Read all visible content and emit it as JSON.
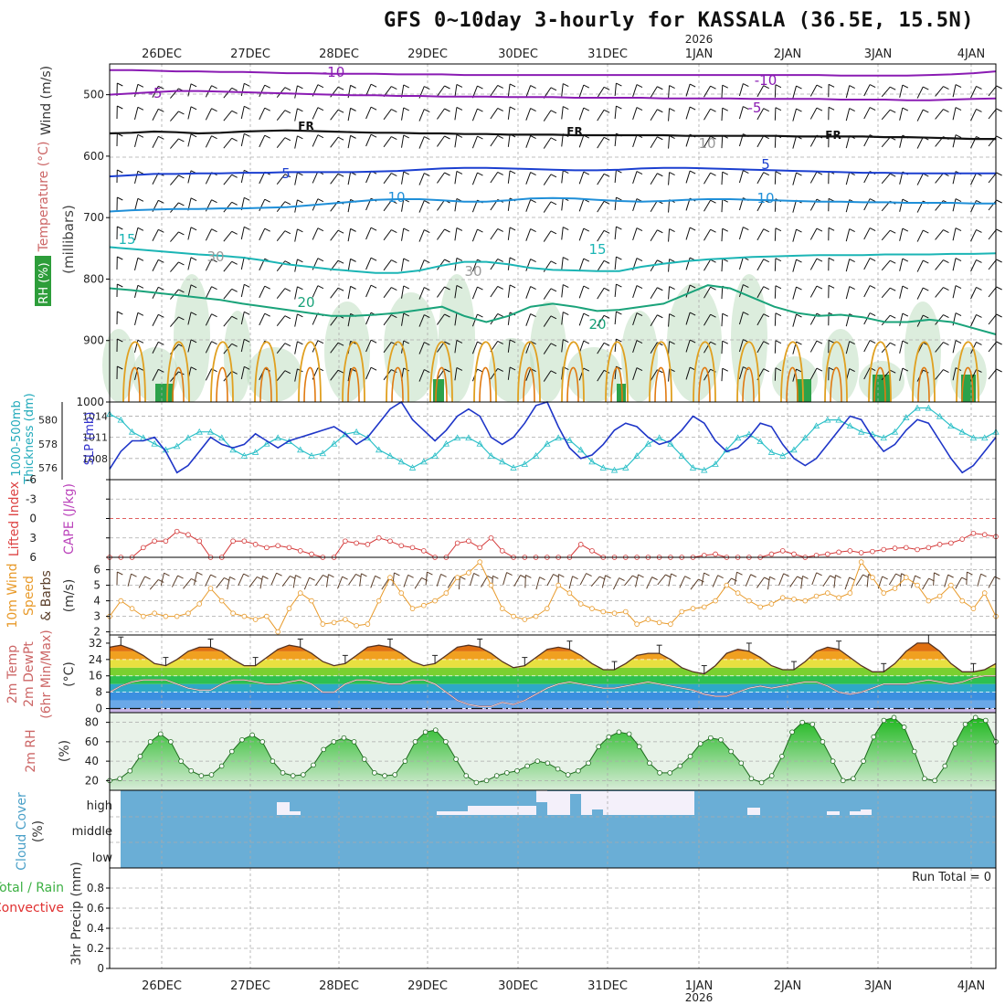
{
  "title": "GFS 0~10day 3-hourly for KASSALA (36.5E, 15.5N)",
  "year_label": "2026",
  "run_total_label": "Run Total = 0",
  "colors": {
    "temp_neg10": "#8a1bb3",
    "temp_neg5": "#8a1bb3",
    "temp_fr": "#111111",
    "temp_5": "#1b3fd0",
    "temp_10": "#1f8fd8",
    "temp_15": "#1bb5b5",
    "temp_20": "#1aa37a",
    "temp_25": "#e0a020",
    "temp_30": "#e07a10",
    "rh_fill": "#2d9d3a",
    "slp": "#1f36c8",
    "thickness": "#2ec0c8",
    "lifted": "#d43838",
    "wind10m": "#e89a2a",
    "barb": "#5a3e2a",
    "cloud": "#6aaed6"
  },
  "chart_data": [
    {
      "type": "line",
      "panel": "upper-air",
      "xlabel": "",
      "ylabel": "(millibars)",
      "side_labels": [
        "Wind (m/s)",
        "Temperature (°C)",
        "RH (%)"
      ],
      "y_ticks": [
        500,
        600,
        700,
        800,
        900,
        1000
      ],
      "ylim": [
        1000,
        450
      ],
      "contour_labels": [
        "-10",
        "-10",
        "-5",
        "-5",
        "FR",
        "FR",
        "FR",
        "5",
        "5",
        "10",
        "10",
        "15",
        "15",
        "20",
        "20",
        "30",
        "30",
        "10"
      ],
      "series": [
        {
          "name": "-10",
          "values": [
            460,
            460,
            461,
            462,
            462,
            463,
            463,
            464,
            465,
            465,
            466,
            466,
            466,
            467,
            467,
            467,
            468,
            468,
            468,
            468,
            468,
            468,
            468,
            468,
            468,
            468,
            468,
            468,
            468,
            468,
            468,
            468,
            468,
            469,
            469,
            469,
            469,
            468,
            467,
            465,
            462
          ]
        },
        {
          "name": "-5",
          "values": [
            500,
            498,
            496,
            494,
            494,
            495,
            496,
            497,
            498,
            499,
            500,
            501,
            501,
            502,
            502,
            503,
            503,
            503,
            504,
            504,
            504,
            505,
            505,
            505,
            505,
            506,
            506,
            506,
            506,
            507,
            507,
            507,
            507,
            508,
            508,
            508,
            509,
            509,
            508,
            507,
            506
          ]
        },
        {
          "name": "FR",
          "values": [
            563,
            562,
            560,
            561,
            563,
            562,
            560,
            559,
            558,
            559,
            560,
            561,
            562,
            562,
            563,
            563,
            564,
            564,
            565,
            565,
            565,
            566,
            566,
            566,
            566,
            566,
            567,
            567,
            567,
            567,
            567,
            568,
            568,
            568,
            568,
            569,
            569,
            570,
            571,
            572,
            572
          ]
        },
        {
          "name": "5",
          "values": [
            633,
            631,
            629,
            629,
            628,
            628,
            627,
            627,
            626,
            626,
            626,
            626,
            625,
            624,
            622,
            620,
            619,
            619,
            620,
            621,
            622,
            623,
            623,
            622,
            620,
            619,
            619,
            620,
            621,
            622,
            623,
            624,
            625,
            626,
            627,
            627,
            628,
            628,
            628,
            628,
            628
          ]
        },
        {
          "name": "10",
          "values": [
            690,
            688,
            687,
            686,
            686,
            685,
            685,
            684,
            683,
            680,
            677,
            674,
            671,
            670,
            670,
            672,
            674,
            674,
            672,
            669,
            668,
            669,
            671,
            673,
            674,
            673,
            671,
            670,
            670,
            671,
            672,
            673,
            674,
            674,
            675,
            675,
            676,
            676,
            676,
            677,
            677
          ]
        },
        {
          "name": "15",
          "values": [
            748,
            751,
            754,
            757,
            760,
            762,
            765,
            770,
            776,
            780,
            784,
            787,
            790,
            790,
            786,
            778,
            772,
            772,
            776,
            782,
            785,
            786,
            787,
            787,
            780,
            775,
            771,
            768,
            766,
            764,
            763,
            762,
            761,
            761,
            761,
            760,
            760,
            760,
            759,
            759,
            758
          ]
        },
        {
          "name": "20",
          "values": [
            815,
            818,
            822,
            826,
            830,
            834,
            840,
            845,
            850,
            855,
            860,
            860,
            858,
            855,
            850,
            845,
            860,
            870,
            860,
            845,
            840,
            845,
            852,
            850,
            845,
            840,
            825,
            810,
            815,
            830,
            845,
            855,
            860,
            858,
            862,
            870,
            870,
            866,
            870,
            880,
            890
          ]
        }
      ]
    },
    {
      "type": "line",
      "panel": "slp-thickness",
      "ylabel": "SLP (mb) / 1000-500mb Thickness (dm)",
      "y_ticks_left": [
        576,
        578,
        580
      ],
      "y_ticks_right": [
        1008,
        1011,
        1014
      ],
      "ylim_left": [
        575,
        581.5
      ],
      "ylim_right": [
        1005,
        1016
      ],
      "series": [
        {
          "name": "SLP (mb)",
          "values": [
            1006.5,
            1009,
            1010.5,
            1010.5,
            1011,
            1009,
            1006,
            1007,
            1009,
            1011,
            1010,
            1009.5,
            1010,
            1011.5,
            1010.5,
            1009.5,
            1010.5,
            1011,
            1011.5,
            1012,
            1012.5,
            1011.5,
            1010,
            1011,
            1013,
            1015,
            1016,
            1013.5,
            1012,
            1010.5,
            1012,
            1014,
            1015,
            1014,
            1011,
            1010,
            1011,
            1013,
            1015.5,
            1016,
            1012.5,
            1009.5,
            1008,
            1008.5,
            1010,
            1012,
            1013,
            1012.5,
            1011,
            1010,
            1010.5,
            1012,
            1014,
            1013,
            1010.5,
            1009,
            1009.5,
            1011,
            1013,
            1012.5,
            1010,
            1008,
            1007,
            1008,
            1010,
            1012,
            1014,
            1013.5,
            1011,
            1009,
            1010,
            1012,
            1013.5,
            1013,
            1010.5,
            1008,
            1006,
            1007,
            1009,
            1011
          ]
        },
        {
          "name": "Thickness (dm)",
          "values": [
            580.5,
            580,
            579,
            578.5,
            578,
            577.5,
            577.8,
            578.5,
            579,
            579,
            578.5,
            577.5,
            577,
            577.3,
            578,
            578.5,
            578.2,
            577.5,
            577,
            577.2,
            578,
            578.8,
            579,
            578.5,
            577.5,
            577,
            576.5,
            576,
            576.5,
            577,
            578,
            578.5,
            578.5,
            578,
            577,
            576.5,
            576,
            576.3,
            577,
            578,
            578.5,
            578.3,
            577.5,
            576.5,
            576,
            575.8,
            576,
            577,
            578,
            578.5,
            578,
            577,
            576,
            575.8,
            576.3,
            577.5,
            578.5,
            578.8,
            578.2,
            577.3,
            577,
            577.5,
            578.5,
            579.5,
            580,
            580,
            579.5,
            579,
            578.8,
            578.5,
            579,
            580.2,
            581,
            581,
            580.3,
            579.5,
            579,
            578.5,
            578.5,
            579
          ]
        }
      ]
    },
    {
      "type": "line",
      "panel": "lifted-cape",
      "ylabel": "Lifted Index / CAPE (J/kg)",
      "y_ticks": [
        "-6",
        "-3",
        "0",
        "3",
        "6"
      ],
      "ylim": [
        6,
        -6
      ],
      "series": [
        {
          "name": "Lifted Index",
          "values": [
            6,
            6,
            6,
            4.5,
            3.5,
            3.5,
            2,
            2.5,
            3.5,
            6,
            6,
            3.5,
            3.5,
            4,
            4.5,
            4.2,
            4.5,
            5,
            5.5,
            6,
            6,
            3.5,
            3.8,
            4,
            3,
            3.5,
            4.2,
            4.5,
            5,
            6,
            6,
            3.8,
            3.5,
            4.5,
            3,
            5,
            6,
            6,
            6,
            6,
            6,
            6,
            4,
            5,
            6,
            6,
            6,
            6,
            6,
            6,
            6,
            6,
            6,
            5.7,
            5.5,
            6,
            6,
            6,
            6,
            5.5,
            5,
            5.5,
            6,
            5.7,
            5.5,
            5.2,
            5,
            5.3,
            5.1,
            4.8,
            4.6,
            4.5,
            4.8,
            4.5,
            4,
            3.8,
            3.2,
            2.3,
            2.5,
            2.8
          ]
        }
      ]
    },
    {
      "type": "line",
      "panel": "wind-10m",
      "ylabel": "10m Wind Speed (m/s) & Barbs",
      "y_ticks": [
        2,
        3,
        4,
        5,
        6
      ],
      "ylim": [
        1.8,
        6.8
      ],
      "series": [
        {
          "name": "10m Wind Speed",
          "values": [
            3,
            4,
            3.5,
            3,
            3.2,
            3,
            3,
            3.2,
            3.8,
            4.8,
            4,
            3.2,
            3,
            2.8,
            3,
            2,
            3.5,
            4.5,
            4,
            2.5,
            2.6,
            2.8,
            2.4,
            2.5,
            4,
            5.5,
            4.5,
            3.5,
            3.7,
            4,
            4.5,
            5.5,
            5.8,
            6.5,
            5,
            3.5,
            3,
            2.8,
            3,
            3.5,
            5,
            4.5,
            3.8,
            3.5,
            3.3,
            3.2,
            3.3,
            2.5,
            2.8,
            2.6,
            2.5,
            3.3,
            3.5,
            3.6,
            4,
            5,
            4.5,
            4,
            3.6,
            3.8,
            4.2,
            4.1,
            4,
            4.3,
            4.5,
            4.2,
            4.5,
            6.5,
            5.5,
            4.5,
            4.8,
            5.5,
            5,
            4,
            4.3,
            5,
            4,
            3.5,
            4.5,
            3
          ]
        }
      ]
    },
    {
      "type": "line",
      "panel": "temp-2m",
      "ylabel": "2m Temp / 2m DewPt (6hr Min/Max) (°C)",
      "y_ticks": [
        0,
        8,
        16,
        24,
        32
      ],
      "ylim": [
        -2,
        36
      ],
      "series": [
        {
          "name": "2m Temp",
          "values": [
            30,
            31,
            29,
            26,
            22,
            21,
            24,
            28,
            30,
            30,
            28,
            24,
            21,
            21,
            25,
            29,
            31,
            30,
            27,
            23,
            21,
            22,
            26,
            30,
            31,
            30,
            27,
            23,
            21,
            22,
            26,
            30,
            31,
            30,
            27,
            23,
            20,
            21,
            25,
            29,
            30,
            29,
            26,
            22,
            19,
            19,
            22,
            26,
            27,
            27,
            24,
            20,
            18,
            17,
            21,
            27,
            29,
            28,
            25,
            21,
            19,
            19,
            23,
            28,
            30,
            29,
            25,
            21,
            18,
            18,
            22,
            28,
            32,
            32,
            28,
            22,
            18,
            18,
            19,
            22
          ]
        },
        {
          "name": "2m DewPt",
          "values": [
            8,
            11,
            13,
            14,
            14,
            14,
            12,
            10,
            9,
            9,
            12,
            14,
            14,
            13,
            12,
            12,
            13,
            14,
            12,
            8,
            8,
            12,
            14,
            14,
            13,
            12,
            12,
            14,
            14,
            12,
            8,
            4,
            2,
            1,
            1,
            3,
            2,
            4,
            7,
            10,
            12,
            13,
            12,
            11,
            10,
            10,
            11,
            12,
            13,
            12,
            11,
            10,
            9,
            7,
            6,
            6,
            8,
            10,
            11,
            10,
            11,
            12,
            13,
            13,
            11,
            8,
            7,
            8,
            10,
            12,
            12,
            12,
            13,
            14,
            13,
            12,
            13,
            15,
            16,
            16
          ]
        }
      ]
    },
    {
      "type": "area",
      "panel": "rh-2m",
      "ylabel": "2m RH (%)",
      "y_ticks": [
        20,
        40,
        60,
        80
      ],
      "ylim": [
        10,
        90
      ],
      "series": [
        {
          "name": "2m RH",
          "values": [
            20,
            22,
            30,
            45,
            60,
            68,
            60,
            40,
            30,
            25,
            26,
            35,
            50,
            62,
            67,
            60,
            40,
            28,
            25,
            26,
            36,
            52,
            60,
            64,
            60,
            42,
            28,
            25,
            26,
            40,
            60,
            70,
            72,
            60,
            42,
            25,
            18,
            20,
            25,
            28,
            30,
            35,
            40,
            38,
            32,
            26,
            30,
            38,
            55,
            65,
            70,
            68,
            55,
            38,
            28,
            28,
            35,
            45,
            58,
            64,
            62,
            50,
            38,
            22,
            18,
            25,
            45,
            70,
            80,
            78,
            60,
            40,
            20,
            22,
            40,
            65,
            82,
            85,
            75,
            50,
            22,
            20,
            35,
            58,
            78,
            85,
            82,
            60
          ]
        }
      ]
    },
    {
      "type": "heatmap",
      "panel": "cloud-cover",
      "ylabel": "Cloud Cover (%)",
      "levels": [
        "high",
        "middle",
        "low"
      ]
    },
    {
      "type": "bar",
      "panel": "precip-3hr",
      "ylabel": "3hr Precip (mm)",
      "side_labels": [
        "Total / Rain",
        "Convective"
      ],
      "y_ticks": [
        "0",
        "0.2",
        "0.4",
        "0.6",
        "0.8"
      ],
      "ylim": [
        0,
        1
      ],
      "values": []
    }
  ],
  "x_axis": {
    "top_labels": [
      "26DEC",
      "27DEC",
      "28DEC",
      "29DEC",
      "30DEC",
      "31DEC",
      "1JAN",
      "2JAN",
      "3JAN",
      "4JAN"
    ],
    "bottom_labels": [
      "26DEC",
      "27DEC",
      "28DEC",
      "29DEC",
      "30DEC",
      "31DEC",
      "1JAN",
      "2JAN",
      "3JAN",
      "4JAN"
    ]
  }
}
